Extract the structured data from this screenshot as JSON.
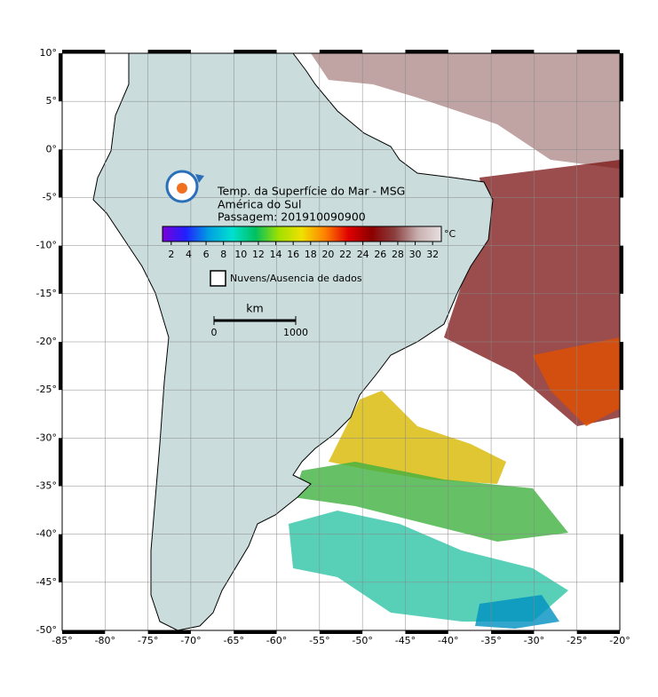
{
  "map": {
    "title_lines": [
      "Temp. da Superfície do Mar - MSG",
      "América do Sul",
      "Passagem: 201910090900"
    ],
    "colorbar": {
      "unit": "°C",
      "lim": [
        1,
        33
      ],
      "ticks": [
        2,
        4,
        6,
        8,
        10,
        12,
        14,
        16,
        18,
        20,
        22,
        24,
        26,
        28,
        30,
        32
      ],
      "colors": [
        "#7a00d8",
        "#2020ff",
        "#00a0e0",
        "#00e0d0",
        "#00c060",
        "#a0e000",
        "#f0e000",
        "#ff8000",
        "#e00000",
        "#8b0000",
        "#8b4040",
        "#c8b0b0",
        "#e8e0e0"
      ]
    },
    "legend": "Nuvens/Ausencia de dados",
    "scale": {
      "unit": "km",
      "ticks": [
        0,
        1000
      ]
    },
    "xlim": [
      -85,
      -20
    ],
    "ylim": [
      -50,
      10
    ],
    "xticks": [
      {
        "value": -85,
        "label": "-85°"
      },
      {
        "value": -80,
        "label": "-80°"
      },
      {
        "value": -75,
        "label": "-75°"
      },
      {
        "value": -70,
        "label": "-70°"
      },
      {
        "value": -65,
        "label": "-65°"
      },
      {
        "value": -60,
        "label": "-60°"
      },
      {
        "value": -55,
        "label": "-55°"
      },
      {
        "value": -50,
        "label": "-50°"
      },
      {
        "value": -45,
        "label": "-45°"
      },
      {
        "value": -40,
        "label": "-40°"
      },
      {
        "value": -35,
        "label": "-35°"
      },
      {
        "value": -30,
        "label": "-30°"
      },
      {
        "value": -25,
        "label": "-25°"
      },
      {
        "value": -20,
        "label": "-20°"
      }
    ],
    "yticks": [
      {
        "value": 10,
        "label": "10°"
      },
      {
        "value": 5,
        "label": "5°"
      },
      {
        "value": 0,
        "label": "0°"
      },
      {
        "value": -5,
        "label": "-5°"
      },
      {
        "value": -10,
        "label": "-10°"
      },
      {
        "value": -15,
        "label": "-15°"
      },
      {
        "value": -20,
        "label": "-20°"
      },
      {
        "value": -25,
        "label": "-25°"
      },
      {
        "value": -30,
        "label": "-30°"
      },
      {
        "value": -35,
        "label": "-35°"
      },
      {
        "value": -40,
        "label": "-40°"
      },
      {
        "value": -45,
        "label": "-45°"
      },
      {
        "value": -50,
        "label": "-50°"
      }
    ]
  }
}
